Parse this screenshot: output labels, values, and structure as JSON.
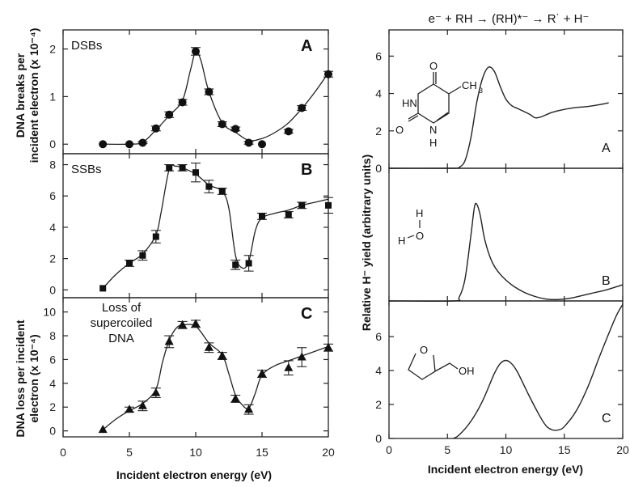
{
  "chart_data": [
    {
      "type": "scatter",
      "panel": "A",
      "annotation": "DSBs",
      "xlim": [
        0,
        20
      ],
      "ylim": [
        -0.2,
        2.4
      ],
      "yticks": [
        0,
        1,
        2
      ],
      "points": [
        [
          3,
          0
        ],
        [
          5,
          0
        ],
        [
          6,
          0.03
        ],
        [
          7,
          0.33
        ],
        [
          8,
          0.62
        ],
        [
          9,
          0.88
        ],
        [
          10,
          1.95
        ],
        [
          11,
          1.1
        ],
        [
          12,
          0.42
        ],
        [
          13,
          0.32
        ],
        [
          14,
          0.03
        ],
        [
          15,
          0
        ],
        [
          17,
          0.27
        ],
        [
          18,
          0.76
        ],
        [
          20,
          1.47
        ]
      ],
      "errors": [
        0,
        0,
        0.02,
        0.05,
        0.06,
        0.06,
        0.08,
        0.06,
        0.05,
        0.04,
        0.03,
        0,
        0.04,
        0.05,
        0.06
      ],
      "curve": [
        [
          3,
          0
        ],
        [
          5,
          0
        ],
        [
          6,
          0.04
        ],
        [
          7,
          0.3
        ],
        [
          8,
          0.6
        ],
        [
          9,
          0.92
        ],
        [
          9.6,
          1.55
        ],
        [
          10,
          1.95
        ],
        [
          10.4,
          1.75
        ],
        [
          11,
          1.1
        ],
        [
          12,
          0.45
        ],
        [
          13,
          0.25
        ],
        [
          14,
          0.08
        ],
        [
          15,
          0.12
        ],
        [
          16,
          0.25
        ],
        [
          17,
          0.45
        ],
        [
          18,
          0.75
        ],
        [
          19,
          1.1
        ],
        [
          20,
          1.5
        ]
      ]
    },
    {
      "type": "scatter",
      "panel": "B",
      "annotation": "SSBs",
      "xlim": [
        0,
        20
      ],
      "ylim": [
        -0.5,
        8.7
      ],
      "yticks": [
        0,
        2,
        4,
        6,
        8
      ],
      "points": [
        [
          3,
          0.1
        ],
        [
          5,
          1.7
        ],
        [
          6,
          2.2
        ],
        [
          7,
          3.4
        ],
        [
          8,
          7.8
        ],
        [
          9,
          7.8
        ],
        [
          10,
          7.5
        ],
        [
          11,
          6.6
        ],
        [
          12,
          6.3
        ],
        [
          13,
          1.6
        ],
        [
          14,
          1.7
        ],
        [
          15,
          4.7
        ],
        [
          17,
          4.8
        ],
        [
          18,
          5.4
        ],
        [
          20,
          5.4
        ]
      ],
      "errors": [
        0,
        0.2,
        0.3,
        0.4,
        0.2,
        0.2,
        0.6,
        0.4,
        0.2,
        0.3,
        0.5,
        0.2,
        0.2,
        0.2,
        0.5
      ],
      "curve": [
        [
          3,
          0.1
        ],
        [
          4,
          1
        ],
        [
          5,
          1.7
        ],
        [
          6,
          2.3
        ],
        [
          7,
          3.5
        ],
        [
          7.4,
          5
        ],
        [
          8,
          7.7
        ],
        [
          8.5,
          7.9
        ],
        [
          9,
          7.8
        ],
        [
          10,
          7.4
        ],
        [
          11,
          6.7
        ],
        [
          12,
          6.3
        ],
        [
          12.5,
          5.2
        ],
        [
          13,
          2.2
        ],
        [
          13.5,
          1.4
        ],
        [
          14,
          1.8
        ],
        [
          14.5,
          3.8
        ],
        [
          15,
          4.6
        ],
        [
          16,
          4.9
        ],
        [
          17,
          5.1
        ],
        [
          18,
          5.4
        ],
        [
          19,
          5.6
        ],
        [
          20,
          5.8
        ]
      ]
    },
    {
      "type": "scatter",
      "panel": "C",
      "annotation": [
        "Loss of",
        "supercoiled",
        "DNA"
      ],
      "xlim": [
        0,
        20
      ],
      "ylim": [
        -0.5,
        11.2
      ],
      "yticks": [
        0,
        2,
        4,
        6,
        8,
        10
      ],
      "points": [
        [
          3,
          0.1
        ],
        [
          5,
          1.8
        ],
        [
          6,
          2.1
        ],
        [
          7,
          3.2
        ],
        [
          8,
          7.5
        ],
        [
          9,
          8.9
        ],
        [
          10,
          9
        ],
        [
          11,
          7
        ],
        [
          12,
          6.3
        ],
        [
          13,
          2.7
        ],
        [
          14,
          1.8
        ],
        [
          15,
          4.8
        ],
        [
          17,
          5.3
        ],
        [
          18,
          6.2
        ],
        [
          20,
          7
        ]
      ],
      "errors": [
        0,
        0.2,
        0.4,
        0.4,
        0.5,
        0.3,
        0.3,
        0.4,
        0.3,
        0.3,
        0.4,
        0.3,
        0.6,
        0.8,
        0.3
      ],
      "curve": [
        [
          3,
          0.1
        ],
        [
          4,
          1
        ],
        [
          5,
          1.7
        ],
        [
          6,
          2.3
        ],
        [
          7,
          3.5
        ],
        [
          7.5,
          5.8
        ],
        [
          8,
          7.6
        ],
        [
          8.5,
          8.6
        ],
        [
          9,
          8.9
        ],
        [
          10,
          8.8
        ],
        [
          11,
          7.4
        ],
        [
          12,
          6.4
        ],
        [
          12.5,
          4.8
        ],
        [
          13,
          3
        ],
        [
          13.5,
          2.2
        ],
        [
          14,
          1.9
        ],
        [
          14.5,
          3.2
        ],
        [
          15,
          4.7
        ],
        [
          16,
          5.5
        ],
        [
          17,
          5.9
        ],
        [
          18,
          6.3
        ],
        [
          19,
          6.7
        ],
        [
          20,
          7.1
        ]
      ]
    },
    {
      "type": "line",
      "panel": "A",
      "title": "e⁻ + RH → (RH)*⁻ → R˙ + H⁻",
      "xlim": [
        0,
        20
      ],
      "ylim": [
        0,
        7.4
      ],
      "yticks": [
        0,
        2,
        4,
        6
      ],
      "molecule": "thymine",
      "curve": [
        [
          0,
          0
        ],
        [
          5.5,
          0
        ],
        [
          6,
          0.05
        ],
        [
          6.5,
          0.4
        ],
        [
          7,
          1.6
        ],
        [
          7.5,
          3.5
        ],
        [
          8,
          4.8
        ],
        [
          8.5,
          5.4
        ],
        [
          9,
          5.2
        ],
        [
          9.5,
          4.4
        ],
        [
          10,
          3.7
        ],
        [
          10.5,
          3.35
        ],
        [
          11,
          3.2
        ],
        [
          12,
          2.9
        ],
        [
          12.5,
          2.7
        ],
        [
          13,
          2.75
        ],
        [
          14,
          3
        ],
        [
          15,
          3.15
        ],
        [
          16,
          3.25
        ],
        [
          17,
          3.3
        ],
        [
          18,
          3.4
        ],
        [
          18.8,
          3.5
        ]
      ]
    },
    {
      "type": "line",
      "panel": "B",
      "xlim": [
        0,
        20
      ],
      "ylim": [
        0,
        7.4
      ],
      "molecule": "water",
      "curve": [
        [
          0,
          0
        ],
        [
          5.5,
          0
        ],
        [
          6,
          0.2
        ],
        [
          6.5,
          1.2
        ],
        [
          7,
          3.6
        ],
        [
          7.3,
          5.2
        ],
        [
          7.5,
          5.4
        ],
        [
          7.8,
          4.8
        ],
        [
          8.2,
          3.4
        ],
        [
          8.8,
          2.2
        ],
        [
          9.5,
          1.5
        ],
        [
          10.5,
          0.9
        ],
        [
          11.5,
          0.5
        ],
        [
          12.5,
          0.25
        ],
        [
          13.5,
          0.1
        ],
        [
          14.5,
          0.08
        ],
        [
          15.5,
          0.15
        ],
        [
          16.5,
          0.3
        ],
        [
          17.5,
          0.45
        ],
        [
          18.5,
          0.6
        ],
        [
          19.5,
          0.8
        ],
        [
          20,
          0.9
        ]
      ]
    },
    {
      "type": "line",
      "panel": "C",
      "xlim": [
        0,
        20
      ],
      "ylim": [
        0,
        8.1
      ],
      "yticks": [
        0,
        2,
        4,
        6
      ],
      "molecule": "tetrahydrofurfuryl alcohol",
      "curve": [
        [
          5.5,
          0
        ],
        [
          6,
          0.2
        ],
        [
          7,
          1
        ],
        [
          8,
          2.2
        ],
        [
          9,
          3.8
        ],
        [
          9.5,
          4.4
        ],
        [
          10,
          4.6
        ],
        [
          10.5,
          4.4
        ],
        [
          11,
          3.9
        ],
        [
          12,
          2.5
        ],
        [
          13,
          1.2
        ],
        [
          13.5,
          0.7
        ],
        [
          14,
          0.5
        ],
        [
          14.5,
          0.5
        ],
        [
          15,
          0.7
        ],
        [
          16,
          1.6
        ],
        [
          17,
          3
        ],
        [
          18,
          4.8
        ],
        [
          19,
          6.5
        ],
        [
          19.5,
          7.3
        ],
        [
          20,
          7.9
        ]
      ]
    }
  ],
  "left": {
    "xticks": [
      0,
      5,
      10,
      15,
      20
    ],
    "xlabel": "Incident electron energy (eV)",
    "ylabel_top": [
      "DNA breaks per",
      "incident electron (x 10⁻⁴)"
    ],
    "ylabel_bottom": [
      "DNA loss per incident",
      "electron (x 10⁻⁴)"
    ]
  },
  "right": {
    "xticks": [
      0,
      5,
      10,
      15,
      20
    ],
    "xlabel": "Incident electron energy (eV)",
    "ylabel": "Relative H⁻ yield (arbitrary units)",
    "mol_labels": {
      "ch3": "CH",
      "ch3_sub": "3",
      "hn": "HN",
      "nh_n": "N",
      "nh_h": "H",
      "o": "O",
      "h": "H",
      "oh": "OH"
    }
  }
}
